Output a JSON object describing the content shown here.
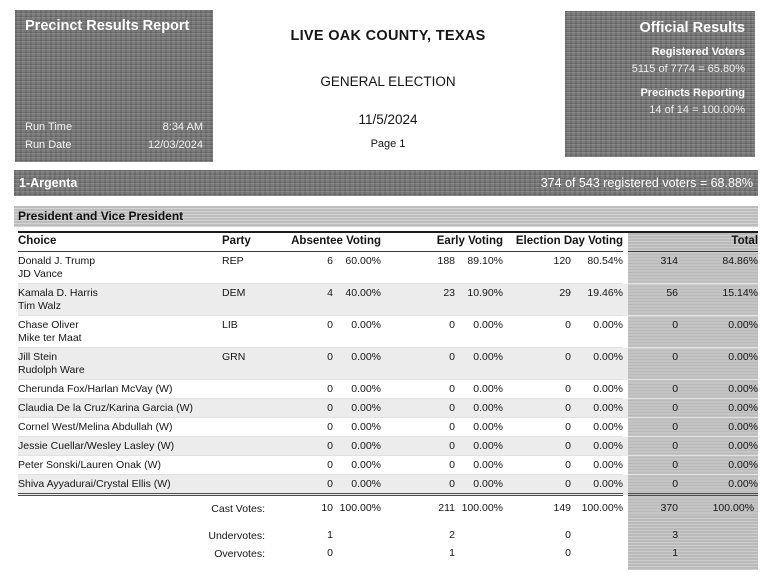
{
  "report": {
    "title": "Precinct Results Report",
    "run_time_label": "Run Time",
    "run_time_value": "8:34 AM",
    "run_date_label": "Run Date",
    "run_date_value": "12/03/2024",
    "county": "LIVE OAK COUNTY, TEXAS",
    "election": "GENERAL ELECTION",
    "election_date": "11/5/2024",
    "page": "Page 1"
  },
  "official_results": {
    "title": "Official Results",
    "registered_voters_label": "Registered Voters",
    "registered_voters_value": "5115 of 7774 = 65.80%",
    "precincts_reporting_label": "Precincts Reporting",
    "precincts_reporting_value": "14 of 14 = 100.00%"
  },
  "precinct": {
    "name": "1-Argenta",
    "turnout": "374 of 543 registered voters = 68.88%"
  },
  "contest": {
    "title": "President and Vice President",
    "columns": {
      "choice": "Choice",
      "party": "Party",
      "absentee": "Absentee Voting",
      "early": "Early Voting",
      "election_day": "Election Day Voting",
      "total": "Total"
    },
    "rows": [
      {
        "name": "Donald J. Trump",
        "name2": "JD Vance",
        "party": "REP",
        "shaded": false,
        "votes": [
          "6",
          "60.00%",
          "188",
          "89.10%",
          "120",
          "80.54%"
        ],
        "total": [
          "314",
          "84.86%"
        ]
      },
      {
        "name": "Kamala D. Harris",
        "name2": "Tim Walz",
        "party": "DEM",
        "shaded": true,
        "votes": [
          "4",
          "40.00%",
          "23",
          "10.90%",
          "29",
          "19.46%"
        ],
        "total": [
          "56",
          "15.14%"
        ]
      },
      {
        "name": "Chase Oliver",
        "name2": "Mike ter Maat",
        "party": "LIB",
        "shaded": false,
        "votes": [
          "0",
          "0.00%",
          "0",
          "0.00%",
          "0",
          "0.00%"
        ],
        "total": [
          "0",
          "0.00%"
        ]
      },
      {
        "name": "Jill Stein",
        "name2": "Rudolph Ware",
        "party": "GRN",
        "shaded": true,
        "votes": [
          "0",
          "0.00%",
          "0",
          "0.00%",
          "0",
          "0.00%"
        ],
        "total": [
          "0",
          "0.00%"
        ]
      },
      {
        "name": "Cherunda Fox/Harlan McVay (W)",
        "name2": "",
        "party": "",
        "shaded": false,
        "votes": [
          "0",
          "0.00%",
          "0",
          "0.00%",
          "0",
          "0.00%"
        ],
        "total": [
          "0",
          "0.00%"
        ]
      },
      {
        "name": "Claudia De la Cruz/Karina Garcia (W)",
        "name2": "",
        "party": "",
        "shaded": true,
        "votes": [
          "0",
          "0.00%",
          "0",
          "0.00%",
          "0",
          "0.00%"
        ],
        "total": [
          "0",
          "0.00%"
        ]
      },
      {
        "name": "Cornel West/Melina Abdullah (W)",
        "name2": "",
        "party": "",
        "shaded": false,
        "votes": [
          "0",
          "0.00%",
          "0",
          "0.00%",
          "0",
          "0.00%"
        ],
        "total": [
          "0",
          "0.00%"
        ]
      },
      {
        "name": "Jessie Cuellar/Wesley Lasley (W)",
        "name2": "",
        "party": "",
        "shaded": true,
        "votes": [
          "0",
          "0.00%",
          "0",
          "0.00%",
          "0",
          "0.00%"
        ],
        "total": [
          "0",
          "0.00%"
        ]
      },
      {
        "name": "Peter Sonski/Lauren Onak (W)",
        "name2": "",
        "party": "",
        "shaded": false,
        "votes": [
          "0",
          "0.00%",
          "0",
          "0.00%",
          "0",
          "0.00%"
        ],
        "total": [
          "0",
          "0.00%"
        ]
      },
      {
        "name": "Shiva Ayyadurai/Crystal Ellis (W)",
        "name2": "",
        "party": "",
        "shaded": true,
        "votes": [
          "0",
          "0.00%",
          "0",
          "0.00%",
          "0",
          "0.00%"
        ],
        "total": [
          "0",
          "0.00%"
        ]
      }
    ],
    "summary": [
      {
        "label": "Cast Votes:",
        "values": [
          "10",
          "100.00%",
          "211",
          "100.00%",
          "149",
          "100.00%"
        ],
        "total": [
          "370",
          "100.00%"
        ]
      },
      {
        "label": "Undervotes:",
        "values": [
          "1",
          "",
          "2",
          "",
          "0",
          ""
        ],
        "total": [
          "3",
          ""
        ]
      },
      {
        "label": "Overvotes:",
        "values": [
          "0",
          "",
          "1",
          "",
          "0",
          ""
        ],
        "total": [
          "1",
          ""
        ]
      }
    ]
  },
  "colors": {
    "header_box_bg": "#757575",
    "precinct_bar_bg": "#7a7a7a",
    "contest_bar_bg": "#c9c9c9",
    "row_shade_bg": "#ececec",
    "total_column_bg": "#c4c4c4",
    "text_dark": "#151515",
    "text_light": "#ffffff"
  }
}
